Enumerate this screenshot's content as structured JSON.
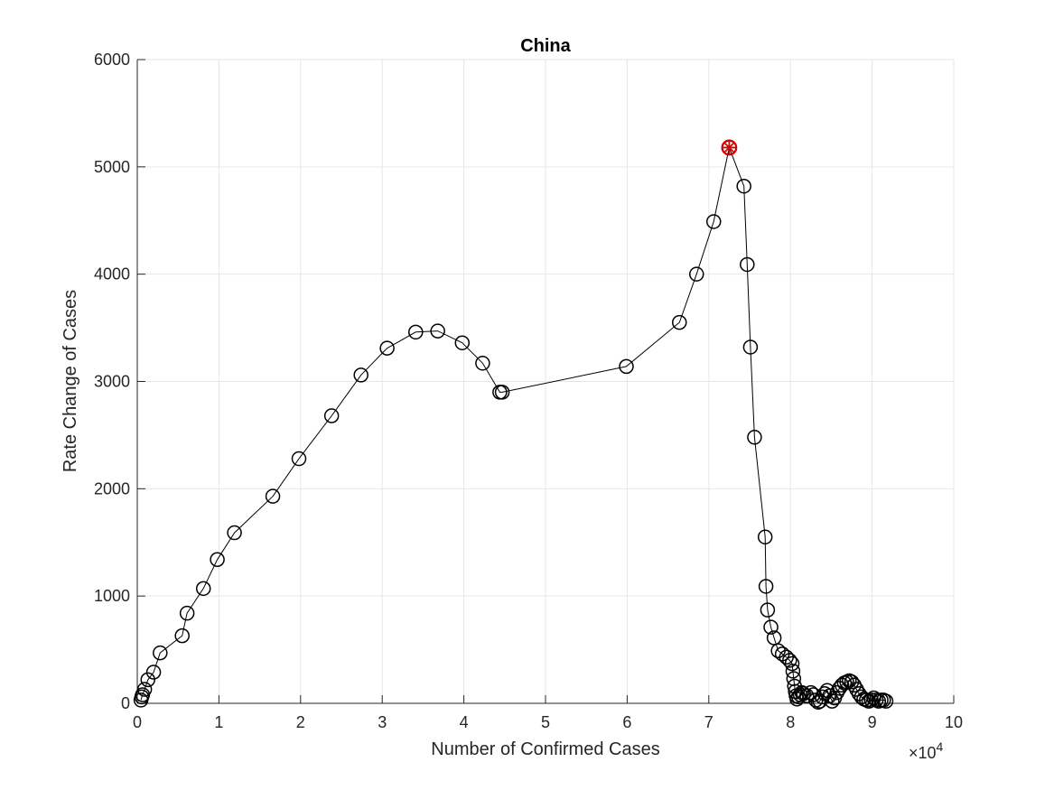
{
  "chart_data": {
    "type": "scatter",
    "title": "China",
    "xlabel": "Number of Confirmed Cases",
    "ylabel": "Rate Change of Cases",
    "xlim": [
      0,
      100000
    ],
    "ylim": [
      0,
      6000
    ],
    "x_ticks": [
      0,
      10000,
      20000,
      30000,
      40000,
      50000,
      60000,
      70000,
      80000,
      90000,
      100000
    ],
    "x_tick_labels": [
      "0",
      "1",
      "2",
      "3",
      "4",
      "5",
      "6",
      "7",
      "8",
      "9",
      "10"
    ],
    "x_exponent_label": "×10",
    "x_exponent_power": "4",
    "y_ticks": [
      0,
      1000,
      2000,
      3000,
      4000,
      5000,
      6000
    ],
    "y_tick_labels": [
      "0",
      "1000",
      "2000",
      "3000",
      "4000",
      "5000",
      "6000"
    ],
    "grid": true,
    "colors": {
      "line": "#000000",
      "marker": "#000000",
      "peak": "#e00000",
      "grid": "#e6e6e6",
      "axis": "#262626"
    },
    "series": [
      {
        "line": true,
        "marker": "circle",
        "x": [
          450,
          550,
          650,
          900,
          1300,
          2000,
          2800,
          5500,
          6100,
          8100,
          9800,
          11900,
          16600,
          19800,
          23800,
          27400,
          30600,
          34100,
          36800,
          39800,
          42300,
          44400,
          44700,
          59900,
          66400,
          68500,
          70600,
          72500,
          74300,
          74700,
          75100,
          75600,
          76900,
          77000,
          77200,
          77600,
          78000,
          78500,
          79000,
          79500,
          79900,
          80200,
          80300,
          80400,
          80500,
          80600,
          80700,
          80800,
          81000,
          81200,
          81400,
          81600,
          82000,
          82500,
          82800,
          83100,
          83400,
          83600,
          83900,
          84200,
          84500,
          84800,
          85100,
          85400,
          85700,
          86000,
          86300,
          86600,
          86900,
          87200,
          87500,
          87800,
          88100,
          88400,
          88700,
          89000,
          89300,
          89600,
          89900,
          90200,
          90500,
          90800,
          91100,
          91400,
          91700
        ],
        "y": [
          30,
          60,
          80,
          130,
          220,
          290,
          470,
          630,
          840,
          1070,
          1340,
          1590,
          1930,
          2280,
          2680,
          3060,
          3310,
          3460,
          3470,
          3360,
          3170,
          2900,
          2900,
          3140,
          3550,
          4000,
          4490,
          5180,
          4820,
          4090,
          3320,
          2480,
          1550,
          1090,
          870,
          710,
          610,
          490,
          460,
          430,
          400,
          370,
          300,
          230,
          160,
          110,
          70,
          40,
          60,
          80,
          100,
          90,
          70,
          100,
          80,
          30,
          10,
          20,
          60,
          90,
          120,
          70,
          20,
          50,
          100,
          140,
          170,
          190,
          200,
          210,
          200,
          170,
          130,
          90,
          60,
          40,
          30,
          20,
          30,
          50,
          30,
          20,
          30,
          30,
          20
        ]
      }
    ],
    "highlight": {
      "x": 72500,
      "y": 5180,
      "marker": "asterisk-circle",
      "color": "#e00000"
    }
  }
}
